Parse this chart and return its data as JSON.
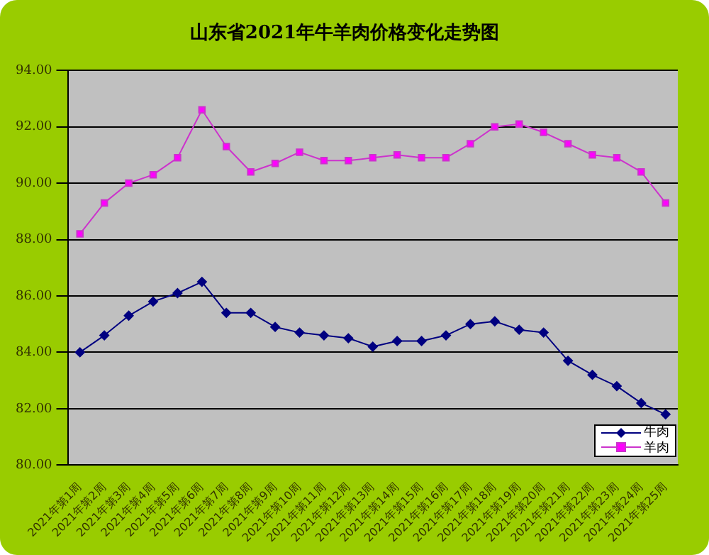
{
  "chart_data": {
    "type": "line",
    "title": "山东省2021年牛羊肉价格变化走势图",
    "categories": [
      "2021年第1周",
      "2021年第2周",
      "2021年第3周",
      "2021年第4周",
      "2021年第5周",
      "2021年第6周",
      "2021年第7周",
      "2021年第8周",
      "2021年第9周",
      "2021年第10周",
      "2021年第11周",
      "2021年第12周",
      "2021年第13周",
      "2021年第14周",
      "2021年第15周",
      "2021年第16周",
      "2021年第17周",
      "2021年第18周",
      "2021年第19周",
      "2021年第20周",
      "2021年第21周",
      "2021年第22周",
      "2021年第23周",
      "2021年第24周",
      "2021年第25周"
    ],
    "series": [
      {
        "name": "牛肉",
        "color": "#000080",
        "marker": "diamond",
        "values": [
          84.0,
          84.6,
          85.3,
          85.8,
          86.1,
          86.5,
          85.4,
          85.4,
          84.9,
          84.7,
          84.6,
          84.5,
          84.2,
          84.4,
          84.4,
          84.6,
          85.0,
          85.1,
          84.8,
          84.7,
          83.7,
          83.2,
          82.8,
          82.2,
          81.8
        ]
      },
      {
        "name": "羊肉",
        "color": "#cc33cc",
        "marker": "square",
        "values": [
          88.2,
          89.3,
          90.0,
          90.3,
          90.9,
          92.6,
          91.3,
          90.4,
          90.7,
          91.1,
          90.8,
          90.8,
          90.9,
          91.0,
          90.9,
          90.9,
          91.4,
          92.0,
          92.1,
          91.8,
          91.4,
          91.0,
          90.9,
          90.4,
          89.3
        ]
      }
    ],
    "ylim": [
      80,
      94
    ],
    "yticks": [
      {
        "value": 80,
        "label": "80.00"
      },
      {
        "value": 82,
        "label": "82.00"
      },
      {
        "value": 84,
        "label": "84.00"
      },
      {
        "value": 86,
        "label": "86.00"
      },
      {
        "value": 88,
        "label": "88.00"
      },
      {
        "value": 90,
        "label": "90.00"
      },
      {
        "value": 92,
        "label": "92.00"
      },
      {
        "value": 94,
        "label": "94.00"
      }
    ],
    "grid": "y",
    "legend": "bottom right",
    "line_style": "solid"
  }
}
